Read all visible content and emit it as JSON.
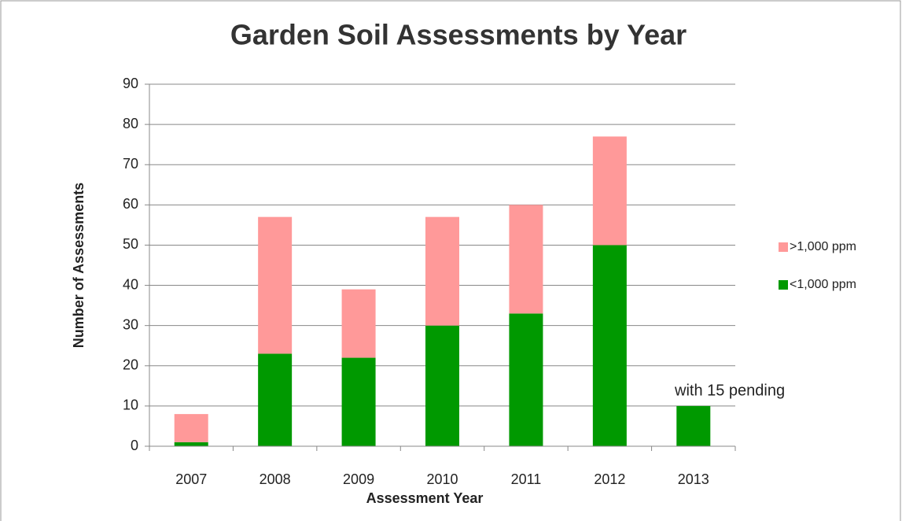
{
  "chart_data": {
    "type": "stacked_bar",
    "title": "Garden Soil Assessments by Year",
    "x_label": "Assessment Year",
    "y_label": "Number of Assessments",
    "categories": [
      "2007",
      "2008",
      "2009",
      "2010",
      "2011",
      "2012",
      "2013"
    ],
    "series": [
      {
        "name": "<1,000 ppm",
        "color": "#009900",
        "values": [
          1,
          23,
          22,
          30,
          33,
          50,
          10
        ]
      },
      {
        "name": ">1,000 ppm",
        "color": "#ff9999",
        "values": [
          7,
          34,
          17,
          27,
          27,
          27,
          0
        ]
      }
    ],
    "annotation": "with 15 pending",
    "ylim": [
      0,
      90
    ],
    "yticks": [
      0,
      10,
      20,
      30,
      40,
      50,
      60,
      70,
      80,
      90
    ],
    "grid": true,
    "legend": "right"
  }
}
